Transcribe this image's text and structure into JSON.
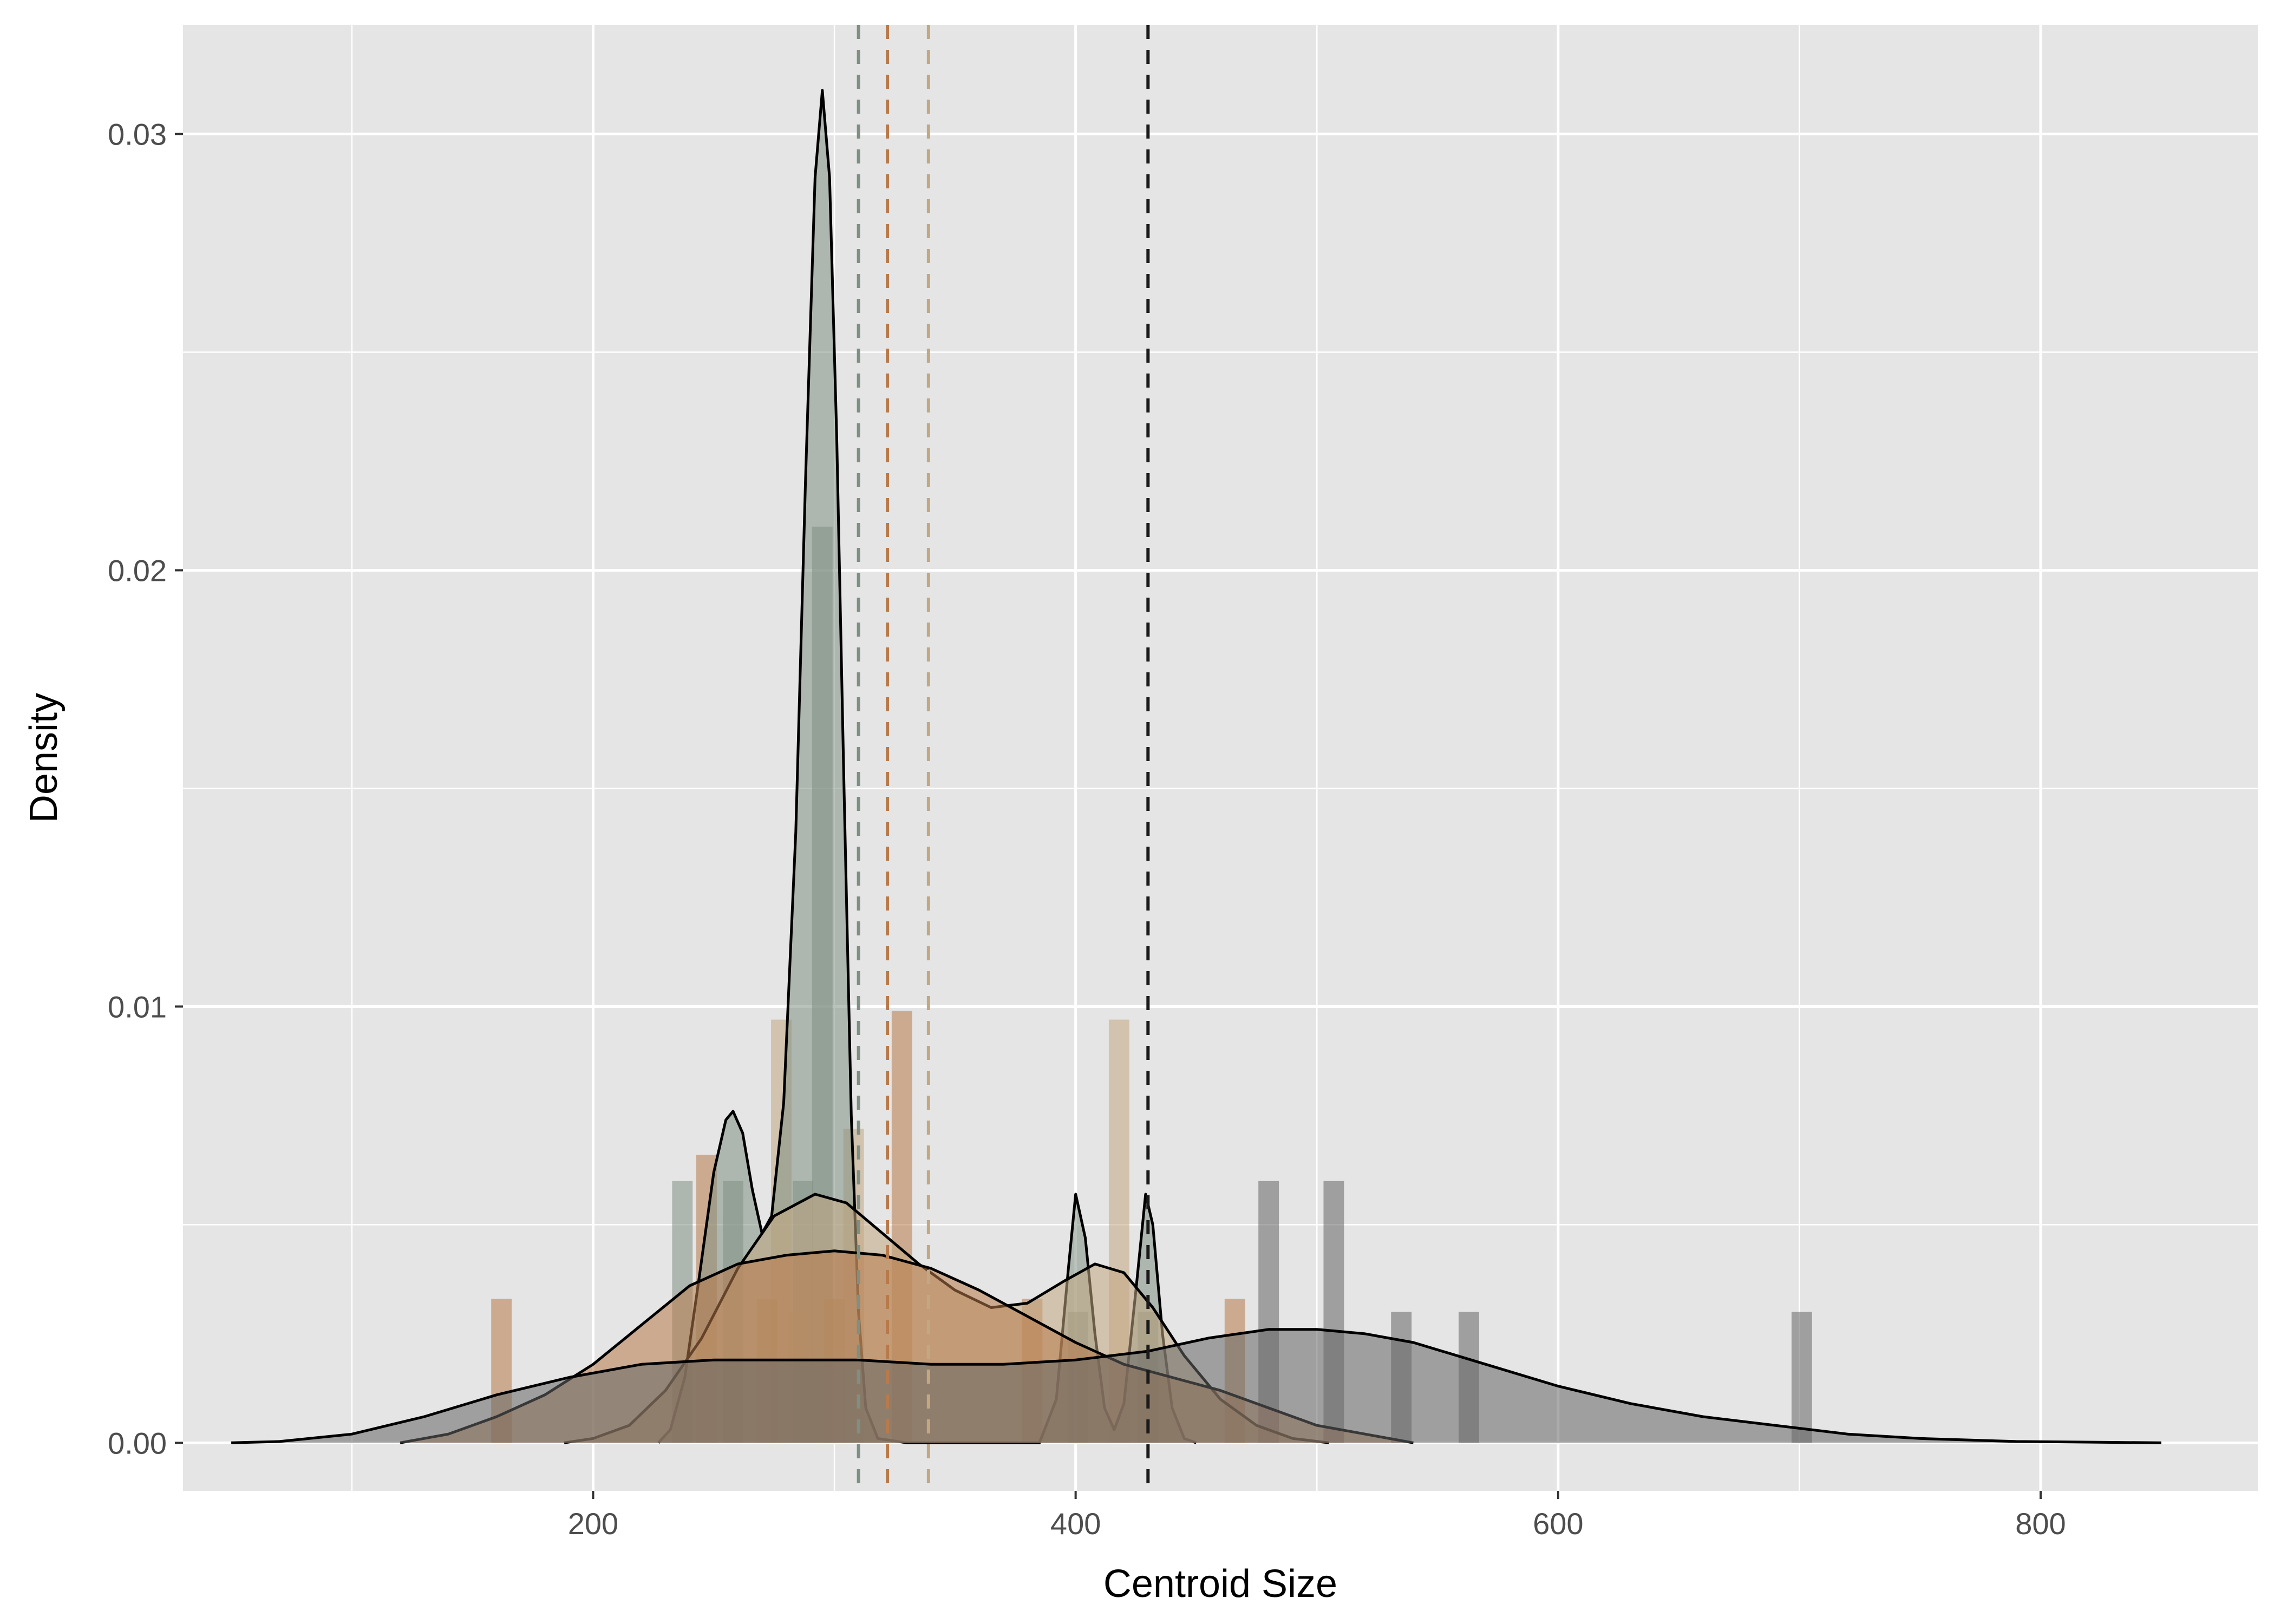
{
  "chart_data": {
    "type": "density",
    "title": "",
    "xlabel": "Centroid Size",
    "ylabel": "Density",
    "xlim": [
      30,
      890
    ],
    "ylim": [
      -0.0011,
      0.0325
    ],
    "x_ticks": [
      200,
      400,
      600,
      800
    ],
    "x_minor_ticks": [
      100,
      300,
      500,
      700
    ],
    "y_ticks": [
      0.0,
      0.01,
      0.02,
      0.03
    ],
    "y_tick_labels": [
      "0.00",
      "0.01",
      "0.02",
      "0.03"
    ],
    "y_minor_ticks": [
      0.005,
      0.015,
      0.025
    ],
    "grid": true,
    "legend": "none",
    "background": "#e5e5e5",
    "grid_color": "#ffffff",
    "curve_color": "#000000",
    "series": [
      {
        "color": "#7f8f84",
        "mean": 310,
        "histogram": [
          {
            "x": 237,
            "y": 0.006
          },
          {
            "x": 258,
            "y": 0.006
          },
          {
            "x": 287,
            "y": 0.006
          },
          {
            "x": 295,
            "y": 0.021
          },
          {
            "x": 401,
            "y": 0.003
          },
          {
            "x": 430,
            "y": 0.003
          }
        ],
        "density": [
          [
            227,
            0
          ],
          [
            232,
            0.0003
          ],
          [
            238,
            0.0015
          ],
          [
            244,
            0.0038
          ],
          [
            250,
            0.0062
          ],
          [
            255,
            0.0074
          ],
          [
            258,
            0.0076
          ],
          [
            262,
            0.0071
          ],
          [
            266,
            0.0058
          ],
          [
            270,
            0.0048
          ],
          [
            274,
            0.0052
          ],
          [
            279,
            0.0078
          ],
          [
            284,
            0.014
          ],
          [
            288,
            0.022
          ],
          [
            292,
            0.029
          ],
          [
            295,
            0.031
          ],
          [
            298,
            0.029
          ],
          [
            301,
            0.023
          ],
          [
            304,
            0.015
          ],
          [
            307,
            0.0075
          ],
          [
            310,
            0.003
          ],
          [
            313,
            0.0008
          ],
          [
            318,
            0.0001
          ],
          [
            330,
            0
          ],
          [
            385,
            0
          ],
          [
            392,
            0.001
          ],
          [
            397,
            0.004
          ],
          [
            400,
            0.0057
          ],
          [
            404,
            0.0047
          ],
          [
            408,
            0.0025
          ],
          [
            412,
            0.0008
          ],
          [
            416,
            0.0003
          ],
          [
            420,
            0.0009
          ],
          [
            425,
            0.0035
          ],
          [
            429,
            0.0057
          ],
          [
            432,
            0.005
          ],
          [
            436,
            0.0025
          ],
          [
            440,
            0.0008
          ],
          [
            445,
            0.0001
          ],
          [
            450,
            0
          ]
        ]
      },
      {
        "color": "#c2a882",
        "mean": 339,
        "histogram": [
          {
            "x": 278,
            "y": 0.0097
          },
          {
            "x": 285,
            "y": 0.003
          },
          {
            "x": 308,
            "y": 0.0072
          },
          {
            "x": 418,
            "y": 0.0097
          }
        ],
        "density": [
          [
            188,
            0
          ],
          [
            200,
            0.0001
          ],
          [
            215,
            0.0004
          ],
          [
            230,
            0.0012
          ],
          [
            245,
            0.0024
          ],
          [
            260,
            0.004
          ],
          [
            275,
            0.0052
          ],
          [
            292,
            0.0057
          ],
          [
            305,
            0.0055
          ],
          [
            320,
            0.0048
          ],
          [
            335,
            0.0041
          ],
          [
            350,
            0.0035
          ],
          [
            365,
            0.0031
          ],
          [
            380,
            0.0032
          ],
          [
            395,
            0.0037
          ],
          [
            408,
            0.0041
          ],
          [
            420,
            0.0039
          ],
          [
            432,
            0.0031
          ],
          [
            445,
            0.002
          ],
          [
            460,
            0.001
          ],
          [
            475,
            0.0004
          ],
          [
            490,
            0.0001
          ],
          [
            505,
            0
          ]
        ]
      },
      {
        "color": "#b87a4b",
        "mean": 322,
        "histogram": [
          {
            "x": 162,
            "y": 0.0033
          },
          {
            "x": 247,
            "y": 0.0066
          },
          {
            "x": 272,
            "y": 0.0033
          },
          {
            "x": 300,
            "y": 0.0033
          },
          {
            "x": 328,
            "y": 0.0099
          },
          {
            "x": 382,
            "y": 0.0033
          },
          {
            "x": 466,
            "y": 0.0033
          }
        ],
        "density": [
          [
            120,
            0
          ],
          [
            140,
            0.0002
          ],
          [
            160,
            0.0006
          ],
          [
            180,
            0.0011
          ],
          [
            200,
            0.0018
          ],
          [
            220,
            0.0027
          ],
          [
            240,
            0.0036
          ],
          [
            260,
            0.0041
          ],
          [
            280,
            0.0043
          ],
          [
            300,
            0.0044
          ],
          [
            320,
            0.0043
          ],
          [
            340,
            0.004
          ],
          [
            360,
            0.0035
          ],
          [
            380,
            0.0029
          ],
          [
            400,
            0.0023
          ],
          [
            420,
            0.0018
          ],
          [
            440,
            0.0015
          ],
          [
            460,
            0.0012
          ],
          [
            480,
            0.0008
          ],
          [
            500,
            0.0004
          ],
          [
            520,
            0.0002
          ],
          [
            540,
            0
          ]
        ]
      },
      {
        "color": "#666666",
        "mean": 430,
        "histogram": [
          {
            "x": 480,
            "y": 0.006
          },
          {
            "x": 507,
            "y": 0.006
          },
          {
            "x": 535,
            "y": 0.003
          },
          {
            "x": 563,
            "y": 0.003
          },
          {
            "x": 701,
            "y": 0.003
          }
        ],
        "density": [
          [
            50,
            0
          ],
          [
            70,
            3e-05
          ],
          [
            100,
            0.0002
          ],
          [
            130,
            0.0006
          ],
          [
            160,
            0.0011
          ],
          [
            190,
            0.0015
          ],
          [
            220,
            0.0018
          ],
          [
            250,
            0.0019
          ],
          [
            280,
            0.0019
          ],
          [
            310,
            0.0019
          ],
          [
            340,
            0.0018
          ],
          [
            370,
            0.0018
          ],
          [
            400,
            0.0019
          ],
          [
            430,
            0.0021
          ],
          [
            455,
            0.0024
          ],
          [
            480,
            0.0026
          ],
          [
            500,
            0.0026
          ],
          [
            520,
            0.0025
          ],
          [
            540,
            0.0023
          ],
          [
            570,
            0.0018
          ],
          [
            600,
            0.0013
          ],
          [
            630,
            0.0009
          ],
          [
            660,
            0.0006
          ],
          [
            690,
            0.0004
          ],
          [
            720,
            0.0002
          ],
          [
            750,
            0.0001
          ],
          [
            790,
            3e-05
          ],
          [
            850,
            0
          ]
        ]
      }
    ]
  }
}
